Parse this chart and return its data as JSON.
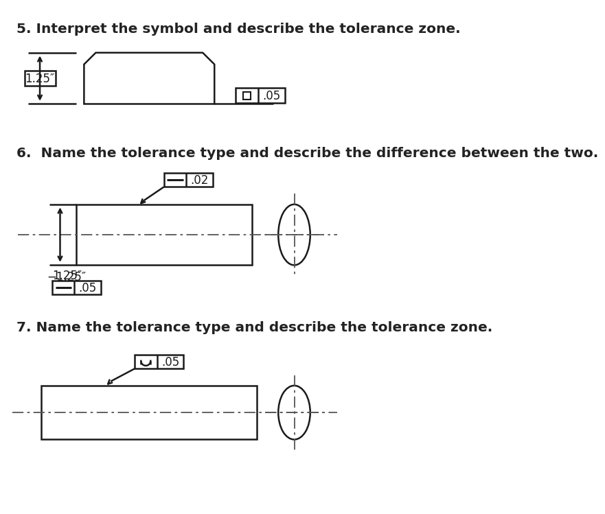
{
  "bg_color": "#ffffff",
  "line_color": "#1a1a1a",
  "q5_title": "5. Interpret the symbol and describe the tolerance zone.",
  "q6_title": "6.  Name the tolerance type and describe the difference between the two.",
  "q7_title": "7. Name the tolerance type and describe the tolerance zone.",
  "dim_1_25": "1.25″",
  "val_05": ".05",
  "val_02": ".02",
  "val_05b": ".05",
  "font_size_title": 14.5,
  "font_size_label": 12,
  "lw": 1.8
}
